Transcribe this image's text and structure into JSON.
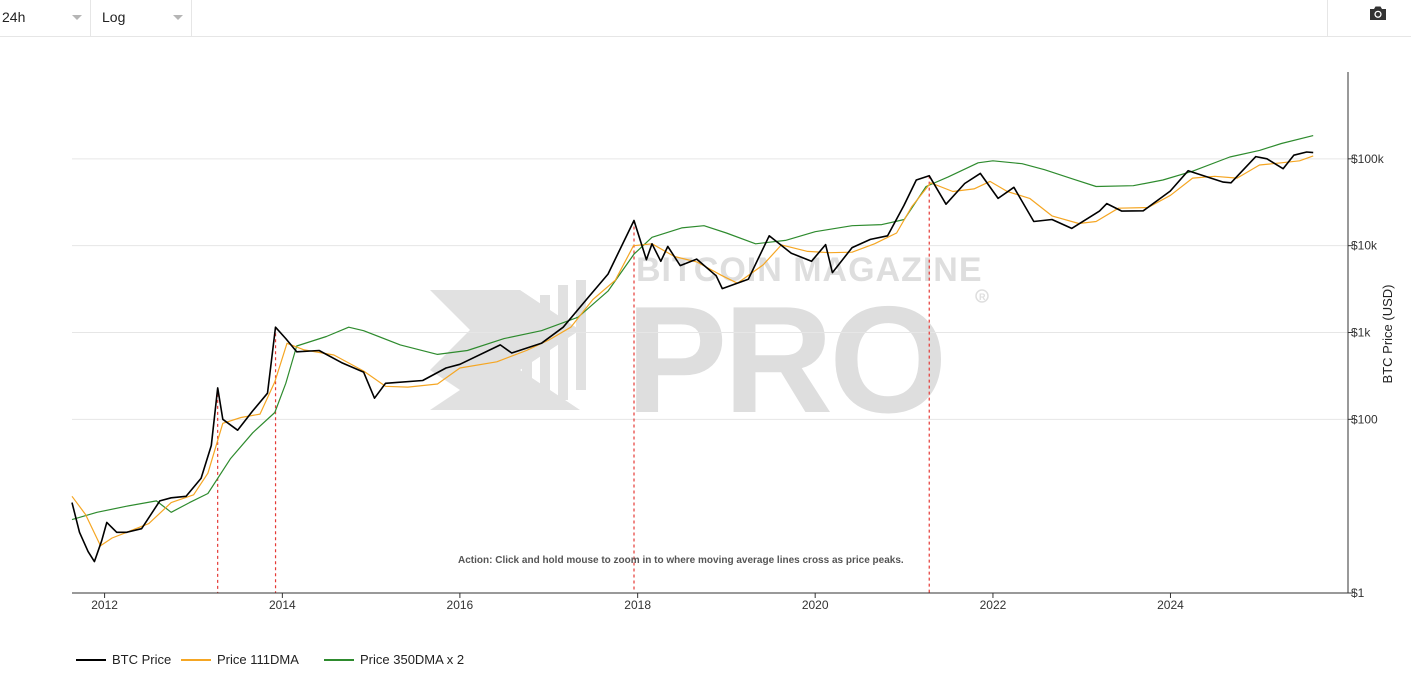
{
  "toolbar": {
    "interval": "24h",
    "scale": "Log"
  },
  "colors": {
    "btc": "#000000",
    "dma111": "#f5a623",
    "dma350x2": "#2e8b2e",
    "peak_marker": "#e53935",
    "grid": "#e6e6e6",
    "watermark": "#d9d9d9"
  },
  "icons": {
    "camera": "camera-icon",
    "caret": "chevron-down-icon"
  },
  "watermark": {
    "line1": "BITCOIN MAGAZINE",
    "line2": "PRO"
  },
  "chart_data": {
    "type": "line",
    "scale": "log",
    "ylabel": "BTC Price (USD)",
    "xlim": [
      "2011-08-20",
      "2025-12-31"
    ],
    "ylim": [
      1,
      1000000
    ],
    "x_ticks": [
      "2012",
      "2014",
      "2016",
      "2018",
      "2020",
      "2022",
      "2024"
    ],
    "y_ticks": [
      {
        "value": 1,
        "label": "$1"
      },
      {
        "value": 100,
        "label": "$100"
      },
      {
        "value": 1000,
        "label": "$1k"
      },
      {
        "value": 10000,
        "label": "$10k"
      },
      {
        "value": 100000,
        "label": "$100k"
      }
    ],
    "grid": "horizontal",
    "legend_position": "bottom-left",
    "annotation": "Action: Click and hold mouse to zoom in to where moving average lines cross as price peaks.",
    "peak_markers": [
      "2013-04-10",
      "2013-12-04",
      "2017-12-17",
      "2021-04-14"
    ],
    "series": [
      {
        "name": "BTC Price",
        "color": "#000000",
        "points": [
          [
            "2011-08-20",
            11
          ],
          [
            "2011-09-20",
            5
          ],
          [
            "2011-10-25",
            3
          ],
          [
            "2011-11-20",
            2.3
          ],
          [
            "2011-12-20",
            4
          ],
          [
            "2012-01-10",
            6.5
          ],
          [
            "2012-02-20",
            5
          ],
          [
            "2012-04-01",
            5
          ],
          [
            "2012-06-01",
            5.5
          ],
          [
            "2012-08-15",
            11.5
          ],
          [
            "2012-10-01",
            12.5
          ],
          [
            "2012-12-01",
            13
          ],
          [
            "2013-02-01",
            21
          ],
          [
            "2013-03-15",
            50
          ],
          [
            "2013-04-10",
            230
          ],
          [
            "2013-05-01",
            100
          ],
          [
            "2013-07-01",
            75
          ],
          [
            "2013-09-01",
            125
          ],
          [
            "2013-11-01",
            200
          ],
          [
            "2013-12-04",
            1150
          ],
          [
            "2014-01-15",
            850
          ],
          [
            "2014-03-01",
            600
          ],
          [
            "2014-06-01",
            620
          ],
          [
            "2014-09-01",
            450
          ],
          [
            "2014-12-01",
            350
          ],
          [
            "2015-01-15",
            175
          ],
          [
            "2015-03-01",
            260
          ],
          [
            "2015-08-01",
            280
          ],
          [
            "2015-11-05",
            390
          ],
          [
            "2016-01-01",
            430
          ],
          [
            "2016-06-15",
            720
          ],
          [
            "2016-08-01",
            580
          ],
          [
            "2016-12-01",
            750
          ],
          [
            "2017-03-01",
            1150
          ],
          [
            "2017-06-15",
            2600
          ],
          [
            "2017-09-01",
            4700
          ],
          [
            "2017-12-17",
            19500
          ],
          [
            "2018-02-06",
            6900
          ],
          [
            "2018-03-01",
            10500
          ],
          [
            "2018-04-06",
            6600
          ],
          [
            "2018-05-05",
            9800
          ],
          [
            "2018-06-25",
            5900
          ],
          [
            "2018-09-01",
            7000
          ],
          [
            "2018-11-20",
            4500
          ],
          [
            "2018-12-15",
            3200
          ],
          [
            "2019-04-01",
            4100
          ],
          [
            "2019-06-26",
            13000
          ],
          [
            "2019-09-25",
            8200
          ],
          [
            "2019-12-17",
            6600
          ],
          [
            "2020-02-13",
            10300
          ],
          [
            "2020-03-12",
            4900
          ],
          [
            "2020-06-01",
            9500
          ],
          [
            "2020-08-15",
            11800
          ],
          [
            "2020-10-25",
            13000
          ],
          [
            "2020-12-31",
            29000
          ],
          [
            "2021-02-20",
            57000
          ],
          [
            "2021-04-14",
            64000
          ],
          [
            "2021-06-22",
            30000
          ],
          [
            "2021-09-07",
            52000
          ],
          [
            "2021-11-10",
            68000
          ],
          [
            "2022-01-22",
            35000
          ],
          [
            "2022-03-28",
            47000
          ],
          [
            "2022-06-18",
            19000
          ],
          [
            "2022-09-01",
            20000
          ],
          [
            "2022-11-21",
            15800
          ],
          [
            "2023-03-15",
            25000
          ],
          [
            "2023-04-14",
            30500
          ],
          [
            "2023-06-15",
            25000
          ],
          [
            "2023-09-11",
            25200
          ],
          [
            "2023-12-31",
            42500
          ],
          [
            "2024-03-14",
            73000
          ],
          [
            "2024-08-05",
            54000
          ],
          [
            "2024-09-06",
            53000
          ],
          [
            "2024-12-17",
            106000
          ],
          [
            "2025-02-01",
            100000
          ],
          [
            "2025-04-08",
            77000
          ],
          [
            "2025-05-22",
            110000
          ],
          [
            "2025-07-14",
            120000
          ],
          [
            "2025-08-10",
            118000
          ]
        ]
      },
      {
        "name": "Price 111DMA",
        "color": "#f5a623",
        "points": [
          [
            "2011-08-20",
            13
          ],
          [
            "2011-10-15",
            8
          ],
          [
            "2011-12-15",
            3.5
          ],
          [
            "2012-02-01",
            4.3
          ],
          [
            "2012-04-01",
            5
          ],
          [
            "2012-07-01",
            6.3
          ],
          [
            "2012-10-01",
            11
          ],
          [
            "2013-01-01",
            13.5
          ],
          [
            "2013-03-01",
            24
          ],
          [
            "2013-05-01",
            90
          ],
          [
            "2013-07-15",
            105
          ],
          [
            "2013-10-01",
            115
          ],
          [
            "2013-12-01",
            270
          ],
          [
            "2014-01-20",
            750
          ],
          [
            "2014-04-01",
            630
          ],
          [
            "2014-08-01",
            550
          ],
          [
            "2014-12-01",
            360
          ],
          [
            "2015-03-01",
            240
          ],
          [
            "2015-06-01",
            235
          ],
          [
            "2015-10-01",
            255
          ],
          [
            "2016-01-01",
            390
          ],
          [
            "2016-06-01",
            460
          ],
          [
            "2016-10-01",
            620
          ],
          [
            "2017-01-01",
            820
          ],
          [
            "2017-04-01",
            1150
          ],
          [
            "2017-07-01",
            2400
          ],
          [
            "2017-10-01",
            4000
          ],
          [
            "2017-12-15",
            10000
          ],
          [
            "2018-03-01",
            10500
          ],
          [
            "2018-06-01",
            7500
          ],
          [
            "2018-09-01",
            6500
          ],
          [
            "2018-12-15",
            4500
          ],
          [
            "2019-02-15",
            3700
          ],
          [
            "2019-06-01",
            6000
          ],
          [
            "2019-08-15",
            10200
          ],
          [
            "2019-12-01",
            8600
          ],
          [
            "2020-03-01",
            8300
          ],
          [
            "2020-06-01",
            8400
          ],
          [
            "2020-09-01",
            10500
          ],
          [
            "2020-12-01",
            14000
          ],
          [
            "2021-02-01",
            28000
          ],
          [
            "2021-04-20",
            53000
          ],
          [
            "2021-07-20",
            42000
          ],
          [
            "2021-10-15",
            45000
          ],
          [
            "2021-12-20",
            55000
          ],
          [
            "2022-03-01",
            42000
          ],
          [
            "2022-06-01",
            35000
          ],
          [
            "2022-09-01",
            22000
          ],
          [
            "2022-12-20",
            18000
          ],
          [
            "2023-03-01",
            19000
          ],
          [
            "2023-06-01",
            27000
          ],
          [
            "2023-10-01",
            27500
          ],
          [
            "2024-01-01",
            38000
          ],
          [
            "2024-04-01",
            60000
          ],
          [
            "2024-07-01",
            63000
          ],
          [
            "2024-10-01",
            60000
          ],
          [
            "2025-01-01",
            85000
          ],
          [
            "2025-04-01",
            90000
          ],
          [
            "2025-06-15",
            95000
          ],
          [
            "2025-08-10",
            108000
          ]
        ]
      },
      {
        "name": "Price 350DMA x 2",
        "color": "#2e8b2e",
        "points": [
          [
            "2011-08-20",
            7
          ],
          [
            "2011-12-01",
            8.5
          ],
          [
            "2012-04-01",
            10
          ],
          [
            "2012-08-01",
            11.5
          ],
          [
            "2012-10-01",
            8.5
          ],
          [
            "2012-12-15",
            11
          ],
          [
            "2013-03-01",
            14
          ],
          [
            "2013-06-01",
            35
          ],
          [
            "2013-09-01",
            70
          ],
          [
            "2013-12-01",
            120
          ],
          [
            "2014-01-15",
            260
          ],
          [
            "2014-03-01",
            700
          ],
          [
            "2014-07-01",
            900
          ],
          [
            "2014-10-01",
            1150
          ],
          [
            "2014-12-01",
            1050
          ],
          [
            "2015-05-01",
            720
          ],
          [
            "2015-10-01",
            560
          ],
          [
            "2016-02-01",
            620
          ],
          [
            "2016-07-01",
            850
          ],
          [
            "2016-12-01",
            1050
          ],
          [
            "2017-05-01",
            1500
          ],
          [
            "2017-09-01",
            3000
          ],
          [
            "2017-12-17",
            8000
          ],
          [
            "2018-03-01",
            12500
          ],
          [
            "2018-07-01",
            16000
          ],
          [
            "2018-10-01",
            17000
          ],
          [
            "2019-01-01",
            14000
          ],
          [
            "2019-05-01",
            10500
          ],
          [
            "2019-09-01",
            11500
          ],
          [
            "2020-01-01",
            14500
          ],
          [
            "2020-06-01",
            17000
          ],
          [
            "2020-10-01",
            17500
          ],
          [
            "2021-01-01",
            20000
          ],
          [
            "2021-04-01",
            48000
          ],
          [
            "2021-07-01",
            62000
          ],
          [
            "2021-11-01",
            90000
          ],
          [
            "2022-01-01",
            95000
          ],
          [
            "2022-05-01",
            88000
          ],
          [
            "2022-08-01",
            75000
          ],
          [
            "2022-12-01",
            58000
          ],
          [
            "2023-03-01",
            48000
          ],
          [
            "2023-08-01",
            49000
          ],
          [
            "2023-12-01",
            57000
          ],
          [
            "2024-04-01",
            72000
          ],
          [
            "2024-09-01",
            105000
          ],
          [
            "2025-01-01",
            125000
          ],
          [
            "2025-04-01",
            150000
          ],
          [
            "2025-08-10",
            185000
          ]
        ]
      }
    ]
  }
}
